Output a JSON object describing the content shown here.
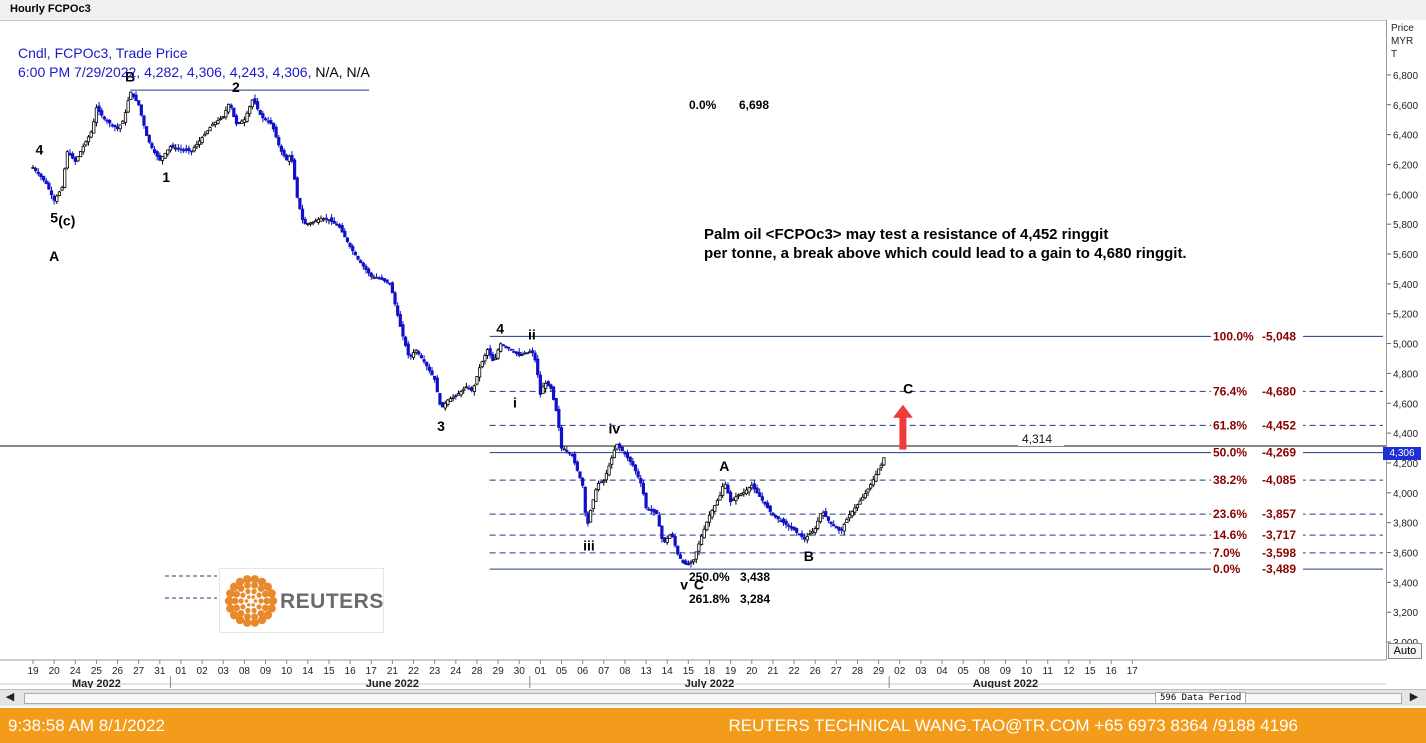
{
  "window": {
    "title": "Hourly FCPOc3"
  },
  "legend": {
    "line1": "Cndl, FCPOc3, Trade Price",
    "line2_values": "6:00 PM 7/29/2022, 4,282, 4,306, 4,243, 4,306,",
    "line2_tail": "N/A, N/A"
  },
  "annotation": {
    "line1": "Palm oil <FCPOc3> may test a resistance of 4,452 ringgit",
    "line2": "per tonne, a break above which could lead to a gain to 4,680 ringgit."
  },
  "logo": {
    "text": "REUTERS",
    "color": "#e8892b"
  },
  "y_axis_header": [
    "Price",
    "MYR",
    "T"
  ],
  "last_price_tag": "4,306",
  "auto_button": "Auto",
  "scrollbar": {
    "left_icon": "arrow-left-icon",
    "right_icon": "arrow-right-icon",
    "period_label": "596 Data Period"
  },
  "footer": {
    "left": "9:38:58 AM 8/1/2022",
    "right": "REUTERS TECHNICAL  WANG.TAO@TR.COM  +65 6973 8364 /9188 4196"
  },
  "colors": {
    "bull_candle": "#1010c8",
    "bear_candle": "#000000",
    "fib_text": "#8b0000",
    "fib_line": "#1f3a8a",
    "accent_arrow": "#ef3b3b",
    "footer_bg": "#f39b1a"
  },
  "chart_data": {
    "type": "candlestick",
    "instrument": "FCPOc3",
    "interval": "Hourly",
    "currency": "MYR",
    "ylim": [
      2900,
      6900
    ],
    "y_ticks": [
      3000,
      3200,
      3400,
      3600,
      3800,
      4000,
      4200,
      4400,
      4600,
      4800,
      5000,
      5200,
      5400,
      5600,
      5800,
      6000,
      6200,
      6400,
      6600,
      6800
    ],
    "x_ticks": [
      {
        "day": "19",
        "i": 0
      },
      {
        "day": "20",
        "i": 1
      },
      {
        "day": "24",
        "i": 2
      },
      {
        "day": "25",
        "i": 3
      },
      {
        "day": "26",
        "i": 4
      },
      {
        "day": "27",
        "i": 5
      },
      {
        "day": "31",
        "i": 6
      },
      {
        "day": "01",
        "i": 7
      },
      {
        "day": "02",
        "i": 8
      },
      {
        "day": "03",
        "i": 9
      },
      {
        "day": "08",
        "i": 10
      },
      {
        "day": "09",
        "i": 11
      },
      {
        "day": "10",
        "i": 12
      },
      {
        "day": "14",
        "i": 13
      },
      {
        "day": "15",
        "i": 14
      },
      {
        "day": "16",
        "i": 15
      },
      {
        "day": "17",
        "i": 16
      },
      {
        "day": "21",
        "i": 17
      },
      {
        "day": "22",
        "i": 18
      },
      {
        "day": "23",
        "i": 19
      },
      {
        "day": "24",
        "i": 20
      },
      {
        "day": "28",
        "i": 21
      },
      {
        "day": "29",
        "i": 22
      },
      {
        "day": "30",
        "i": 23
      },
      {
        "day": "01",
        "i": 24
      },
      {
        "day": "05",
        "i": 25
      },
      {
        "day": "06",
        "i": 26
      },
      {
        "day": "07",
        "i": 27
      },
      {
        "day": "08",
        "i": 28
      },
      {
        "day": "13",
        "i": 29
      },
      {
        "day": "14",
        "i": 30
      },
      {
        "day": "15",
        "i": 31
      },
      {
        "day": "18",
        "i": 32
      },
      {
        "day": "19",
        "i": 33
      },
      {
        "day": "20",
        "i": 34
      },
      {
        "day": "21",
        "i": 35
      },
      {
        "day": "22",
        "i": 36
      },
      {
        "day": "26",
        "i": 37
      },
      {
        "day": "27",
        "i": 38
      },
      {
        "day": "28",
        "i": 39
      },
      {
        "day": "29",
        "i": 40
      },
      {
        "day": "02",
        "i": 41
      },
      {
        "day": "03",
        "i": 42
      },
      {
        "day": "04",
        "i": 43
      },
      {
        "day": "05",
        "i": 44
      },
      {
        "day": "08",
        "i": 45
      },
      {
        "day": "09",
        "i": 46
      },
      {
        "day": "10",
        "i": 47
      },
      {
        "day": "11",
        "i": 48
      },
      {
        "day": "12",
        "i": 49
      },
      {
        "day": "15",
        "i": 50
      },
      {
        "day": "16",
        "i": 51
      },
      {
        "day": "17",
        "i": 52
      }
    ],
    "months": [
      {
        "label": "May 2022",
        "at": 3
      },
      {
        "label": "June 2022",
        "at": 17
      },
      {
        "label": "July 2022",
        "at": 32
      },
      {
        "label": "August 2022",
        "at": 46
      }
    ],
    "month_separators": [
      7,
      24,
      41
    ],
    "price_path": [
      [
        0,
        6180
      ],
      [
        0.6,
        6080
      ],
      [
        1,
        5960
      ],
      [
        1.4,
        6050
      ],
      [
        1.6,
        6290
      ],
      [
        2,
        6220
      ],
      [
        2.3,
        6300
      ],
      [
        2.8,
        6430
      ],
      [
        3,
        6580
      ],
      [
        3.4,
        6500
      ],
      [
        4,
        6440
      ],
      [
        4.3,
        6500
      ],
      [
        4.6,
        6690
      ],
      [
        5,
        6600
      ],
      [
        5.4,
        6380
      ],
      [
        5.7,
        6290
      ],
      [
        6,
        6230
      ],
      [
        6.5,
        6320
      ],
      [
        7,
        6300
      ],
      [
        7.5,
        6290
      ],
      [
        8,
        6380
      ],
      [
        8.5,
        6470
      ],
      [
        9,
        6520
      ],
      [
        9.3,
        6620
      ],
      [
        9.6,
        6470
      ],
      [
        10,
        6500
      ],
      [
        10.4,
        6640
      ],
      [
        10.8,
        6520
      ],
      [
        11.3,
        6470
      ],
      [
        11.7,
        6300
      ],
      [
        12,
        6230
      ],
      [
        12.2,
        6270
      ],
      [
        12.5,
        5980
      ],
      [
        12.8,
        5800
      ],
      [
        13.2,
        5810
      ],
      [
        13.6,
        5840
      ],
      [
        14,
        5830
      ],
      [
        14.5,
        5780
      ],
      [
        15,
        5650
      ],
      [
        15.4,
        5560
      ],
      [
        16,
        5450
      ],
      [
        16.5,
        5430
      ],
      [
        16.9,
        5400
      ],
      [
        17.1,
        5280
      ],
      [
        17.4,
        5100
      ],
      [
        17.8,
        4900
      ],
      [
        18.1,
        4960
      ],
      [
        18.5,
        4880
      ],
      [
        19,
        4760
      ],
      [
        19.3,
        4560
      ],
      [
        19.6,
        4620
      ],
      [
        20,
        4650
      ],
      [
        20.5,
        4710
      ],
      [
        20.8,
        4680
      ],
      [
        21.1,
        4830
      ],
      [
        21.5,
        4960
      ],
      [
        21.8,
        4870
      ],
      [
        22.1,
        5000
      ],
      [
        22.5,
        4970
      ],
      [
        23,
        4920
      ],
      [
        23.6,
        4950
      ],
      [
        23.8,
        4870
      ],
      [
        24,
        4660
      ],
      [
        24.2,
        4740
      ],
      [
        24.5,
        4700
      ],
      [
        24.8,
        4520
      ],
      [
        25,
        4300
      ],
      [
        25.2,
        4290
      ],
      [
        25.5,
        4250
      ],
      [
        26,
        4050
      ],
      [
        26.2,
        3760
      ],
      [
        26.4,
        3900
      ],
      [
        26.7,
        4060
      ],
      [
        27,
        4080
      ],
      [
        27.3,
        4200
      ],
      [
        27.6,
        4330
      ],
      [
        28,
        4260
      ],
      [
        28.4,
        4180
      ],
      [
        28.8,
        4050
      ],
      [
        29,
        3900
      ],
      [
        29.5,
        3860
      ],
      [
        29.8,
        3660
      ],
      [
        30.2,
        3730
      ],
      [
        30.5,
        3590
      ],
      [
        30.8,
        3520
      ],
      [
        31.2,
        3530
      ],
      [
        31.6,
        3700
      ],
      [
        32,
        3850
      ],
      [
        32.5,
        3980
      ],
      [
        32.7,
        4080
      ],
      [
        33,
        3940
      ],
      [
        33.3,
        3980
      ],
      [
        33.6,
        4000
      ],
      [
        34,
        4050
      ],
      [
        34.4,
        3970
      ],
      [
        35,
        3850
      ],
      [
        35.5,
        3800
      ],
      [
        36,
        3750
      ],
      [
        36.5,
        3690
      ],
      [
        37,
        3760
      ],
      [
        37.3,
        3880
      ],
      [
        37.7,
        3800
      ],
      [
        38.2,
        3740
      ],
      [
        38.6,
        3850
      ],
      [
        39,
        3920
      ],
      [
        39.4,
        4000
      ],
      [
        39.8,
        4100
      ],
      [
        40,
        4160
      ],
      [
        40.2,
        4200
      ],
      [
        40.35,
        4306
      ]
    ],
    "swing_levels": [
      {
        "label": "0.0%",
        "value": "6,698"
      },
      {
        "label": "250.0%",
        "value": "3,438"
      },
      {
        "label": "261.8%",
        "value": "3,284"
      }
    ],
    "fibonacci_levels": [
      {
        "pct": "100.0%",
        "price": "5,048",
        "value": 5048,
        "solid": true
      },
      {
        "pct": "76.4%",
        "price": "4,680",
        "value": 4680,
        "solid": false
      },
      {
        "pct": "61.8%",
        "price": "4,452",
        "value": 4452,
        "solid": false
      },
      {
        "pct": "50.0%",
        "price": "4,269",
        "value": 4269,
        "solid": true
      },
      {
        "pct": "38.2%",
        "price": "4,085",
        "value": 4085,
        "solid": false
      },
      {
        "pct": "23.6%",
        "price": "3,857",
        "value": 3857,
        "solid": false
      },
      {
        "pct": "14.6%",
        "price": "3,717",
        "value": 3717,
        "solid": false
      },
      {
        "pct": "7.0%",
        "price": "3,598",
        "value": 3598,
        "solid": false
      },
      {
        "pct": "0.0%",
        "price": "3,489",
        "value": 3489,
        "solid": true
      }
    ],
    "horizontal_level": {
      "label": "4,314",
      "value": 4314
    },
    "last_price": 4306,
    "wave_labels": [
      {
        "text": "4",
        "i": 0.3,
        "price": 6200,
        "pos": "above"
      },
      {
        "text": "5",
        "i": 1.0,
        "price": 5960,
        "pos": "below"
      },
      {
        "text": "(c)",
        "i": 1.6,
        "price": 5940,
        "pos": "below"
      },
      {
        "text": "A",
        "i": 1.0,
        "price": 5700,
        "pos": "below"
      },
      {
        "text": "B",
        "i": 4.6,
        "price": 6690,
        "pos": "above"
      },
      {
        "text": "1",
        "i": 6.3,
        "price": 6230,
        "pos": "below"
      },
      {
        "text": "2",
        "i": 9.6,
        "price": 6620,
        "pos": "above"
      },
      {
        "text": "3",
        "i": 19.3,
        "price": 4560,
        "pos": "below"
      },
      {
        "text": "4",
        "i": 22.1,
        "price": 5000,
        "pos": "above"
      },
      {
        "text": "ii",
        "i": 23.6,
        "price": 4960,
        "pos": "above"
      },
      {
        "text": "i",
        "i": 22.8,
        "price": 4720,
        "pos": "below"
      },
      {
        "text": "iii",
        "i": 26.3,
        "price": 3760,
        "pos": "below"
      },
      {
        "text": "iv",
        "i": 27.5,
        "price": 4330,
        "pos": "above"
      },
      {
        "text": "v",
        "i": 30.8,
        "price": 3500,
        "pos": "below"
      },
      {
        "text": "C",
        "i": 31.5,
        "price": 3500,
        "pos": "below"
      },
      {
        "text": "A",
        "i": 32.7,
        "price": 4080,
        "pos": "above"
      },
      {
        "text": "B",
        "i": 36.7,
        "price": 3690,
        "pos": "below"
      },
      {
        "text": "C",
        "i": 41.4,
        "price": 4600,
        "pos": "above"
      }
    ]
  }
}
